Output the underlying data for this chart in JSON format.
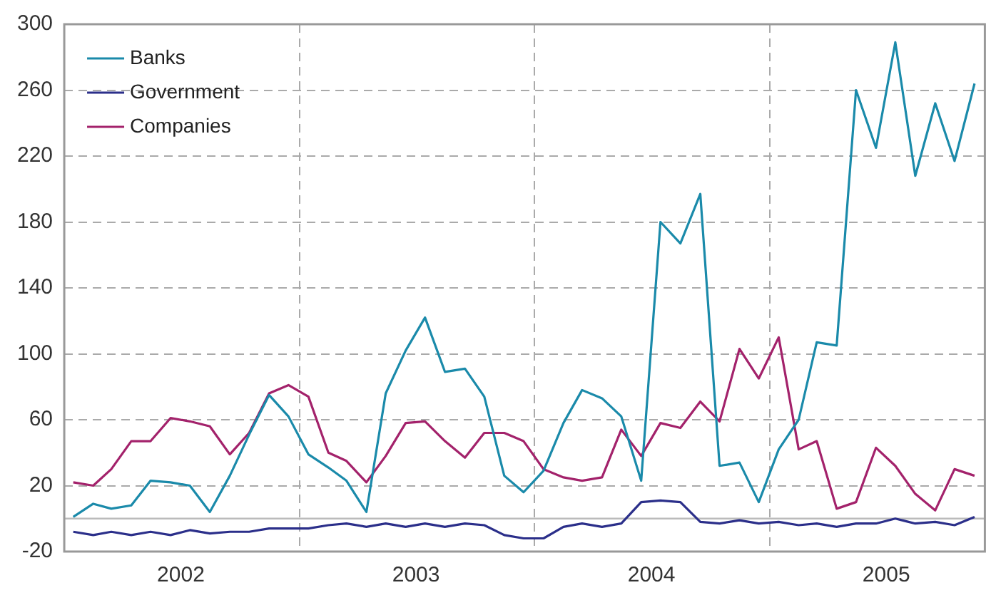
{
  "chart_data": {
    "type": "line",
    "x": [
      "2002-01-15",
      "2002-02-15",
      "2002-03-15",
      "2002-04-15",
      "2002-05-15",
      "2002-06-15",
      "2002-07-15",
      "2002-08-15",
      "2002-09-15",
      "2002-10-15",
      "2002-11-15",
      "2002-12-15",
      "2003-01-15",
      "2003-02-15",
      "2003-03-15",
      "2003-04-15",
      "2003-05-15",
      "2003-06-15",
      "2003-07-15",
      "2003-08-15",
      "2003-09-15",
      "2003-10-15",
      "2003-11-15",
      "2003-12-15",
      "2004-01-15",
      "2004-02-15",
      "2004-03-15",
      "2004-04-15",
      "2004-05-15",
      "2004-06-15",
      "2004-07-15",
      "2004-08-15",
      "2004-09-15",
      "2004-10-15",
      "2004-11-15",
      "2004-12-15",
      "2005-01-15",
      "2005-02-15",
      "2005-03-15",
      "2005-04-15",
      "2005-05-15",
      "2005-06-15",
      "2005-07-15",
      "2005-08-15",
      "2005-09-15",
      "2005-10-15",
      "2005-11-15"
    ],
    "series": [
      {
        "name": "Banks",
        "color": "#1a8aaa",
        "values": [
          1,
          9,
          6,
          8,
          23,
          22,
          20,
          4,
          26,
          51,
          75,
          62,
          39,
          31,
          23,
          4,
          76,
          102,
          122,
          89,
          91,
          74,
          26,
          16,
          29,
          58,
          78,
          73,
          62,
          23,
          180,
          167,
          197,
          32,
          34,
          10,
          42,
          60,
          107,
          105,
          260,
          225,
          289,
          208,
          252,
          217,
          264
        ]
      },
      {
        "name": "Government",
        "color": "#2b2f8a",
        "values": [
          -8,
          -10,
          -8,
          -10,
          -8,
          -10,
          -7,
          -9,
          -8,
          -8,
          -6,
          -6,
          -6,
          -4,
          -3,
          -5,
          -3,
          -5,
          -3,
          -5,
          -3,
          -4,
          -10,
          -12,
          -12,
          -5,
          -3,
          -5,
          -3,
          10,
          11,
          10,
          -2,
          -3,
          -1,
          -3,
          -2,
          -4,
          -3,
          -5,
          -3,
          -3,
          0,
          -3,
          -2,
          -4,
          1
        ]
      },
      {
        "name": "Companies",
        "color": "#a3226b",
        "values": [
          22,
          20,
          30,
          47,
          47,
          61,
          59,
          56,
          39,
          52,
          76,
          81,
          74,
          40,
          35,
          22,
          38,
          58,
          59,
          47,
          37,
          52,
          52,
          47,
          30,
          25,
          23,
          25,
          54,
          38,
          58,
          55,
          71,
          59,
          103,
          85,
          110,
          42,
          47,
          6,
          10,
          43,
          32,
          15,
          5,
          30,
          26
        ]
      }
    ],
    "xlim": [
      "2002-01-01",
      "2005-12-01"
    ],
    "xticks": [
      {
        "value": "2002-07-01",
        "label": "2002"
      },
      {
        "value": "2003-01-01",
        "label": null
      },
      {
        "value": "2003-07-01",
        "label": "2003"
      },
      {
        "value": "2004-01-01",
        "label": null
      },
      {
        "value": "2004-07-01",
        "label": "2004"
      },
      {
        "value": "2005-01-01",
        "label": null
      },
      {
        "value": "2005-07-01",
        "label": "2005"
      }
    ],
    "ylim": [
      -20,
      300
    ],
    "yticks": [
      -20,
      20,
      60,
      100,
      140,
      180,
      220,
      260,
      300
    ],
    "ref_lines": [
      {
        "axis": "y",
        "value": 0,
        "color": "#bbbbbb",
        "line_style": "solid"
      }
    ],
    "grid": true,
    "line_style": "solid",
    "marker": "none",
    "legend": "top left"
  }
}
